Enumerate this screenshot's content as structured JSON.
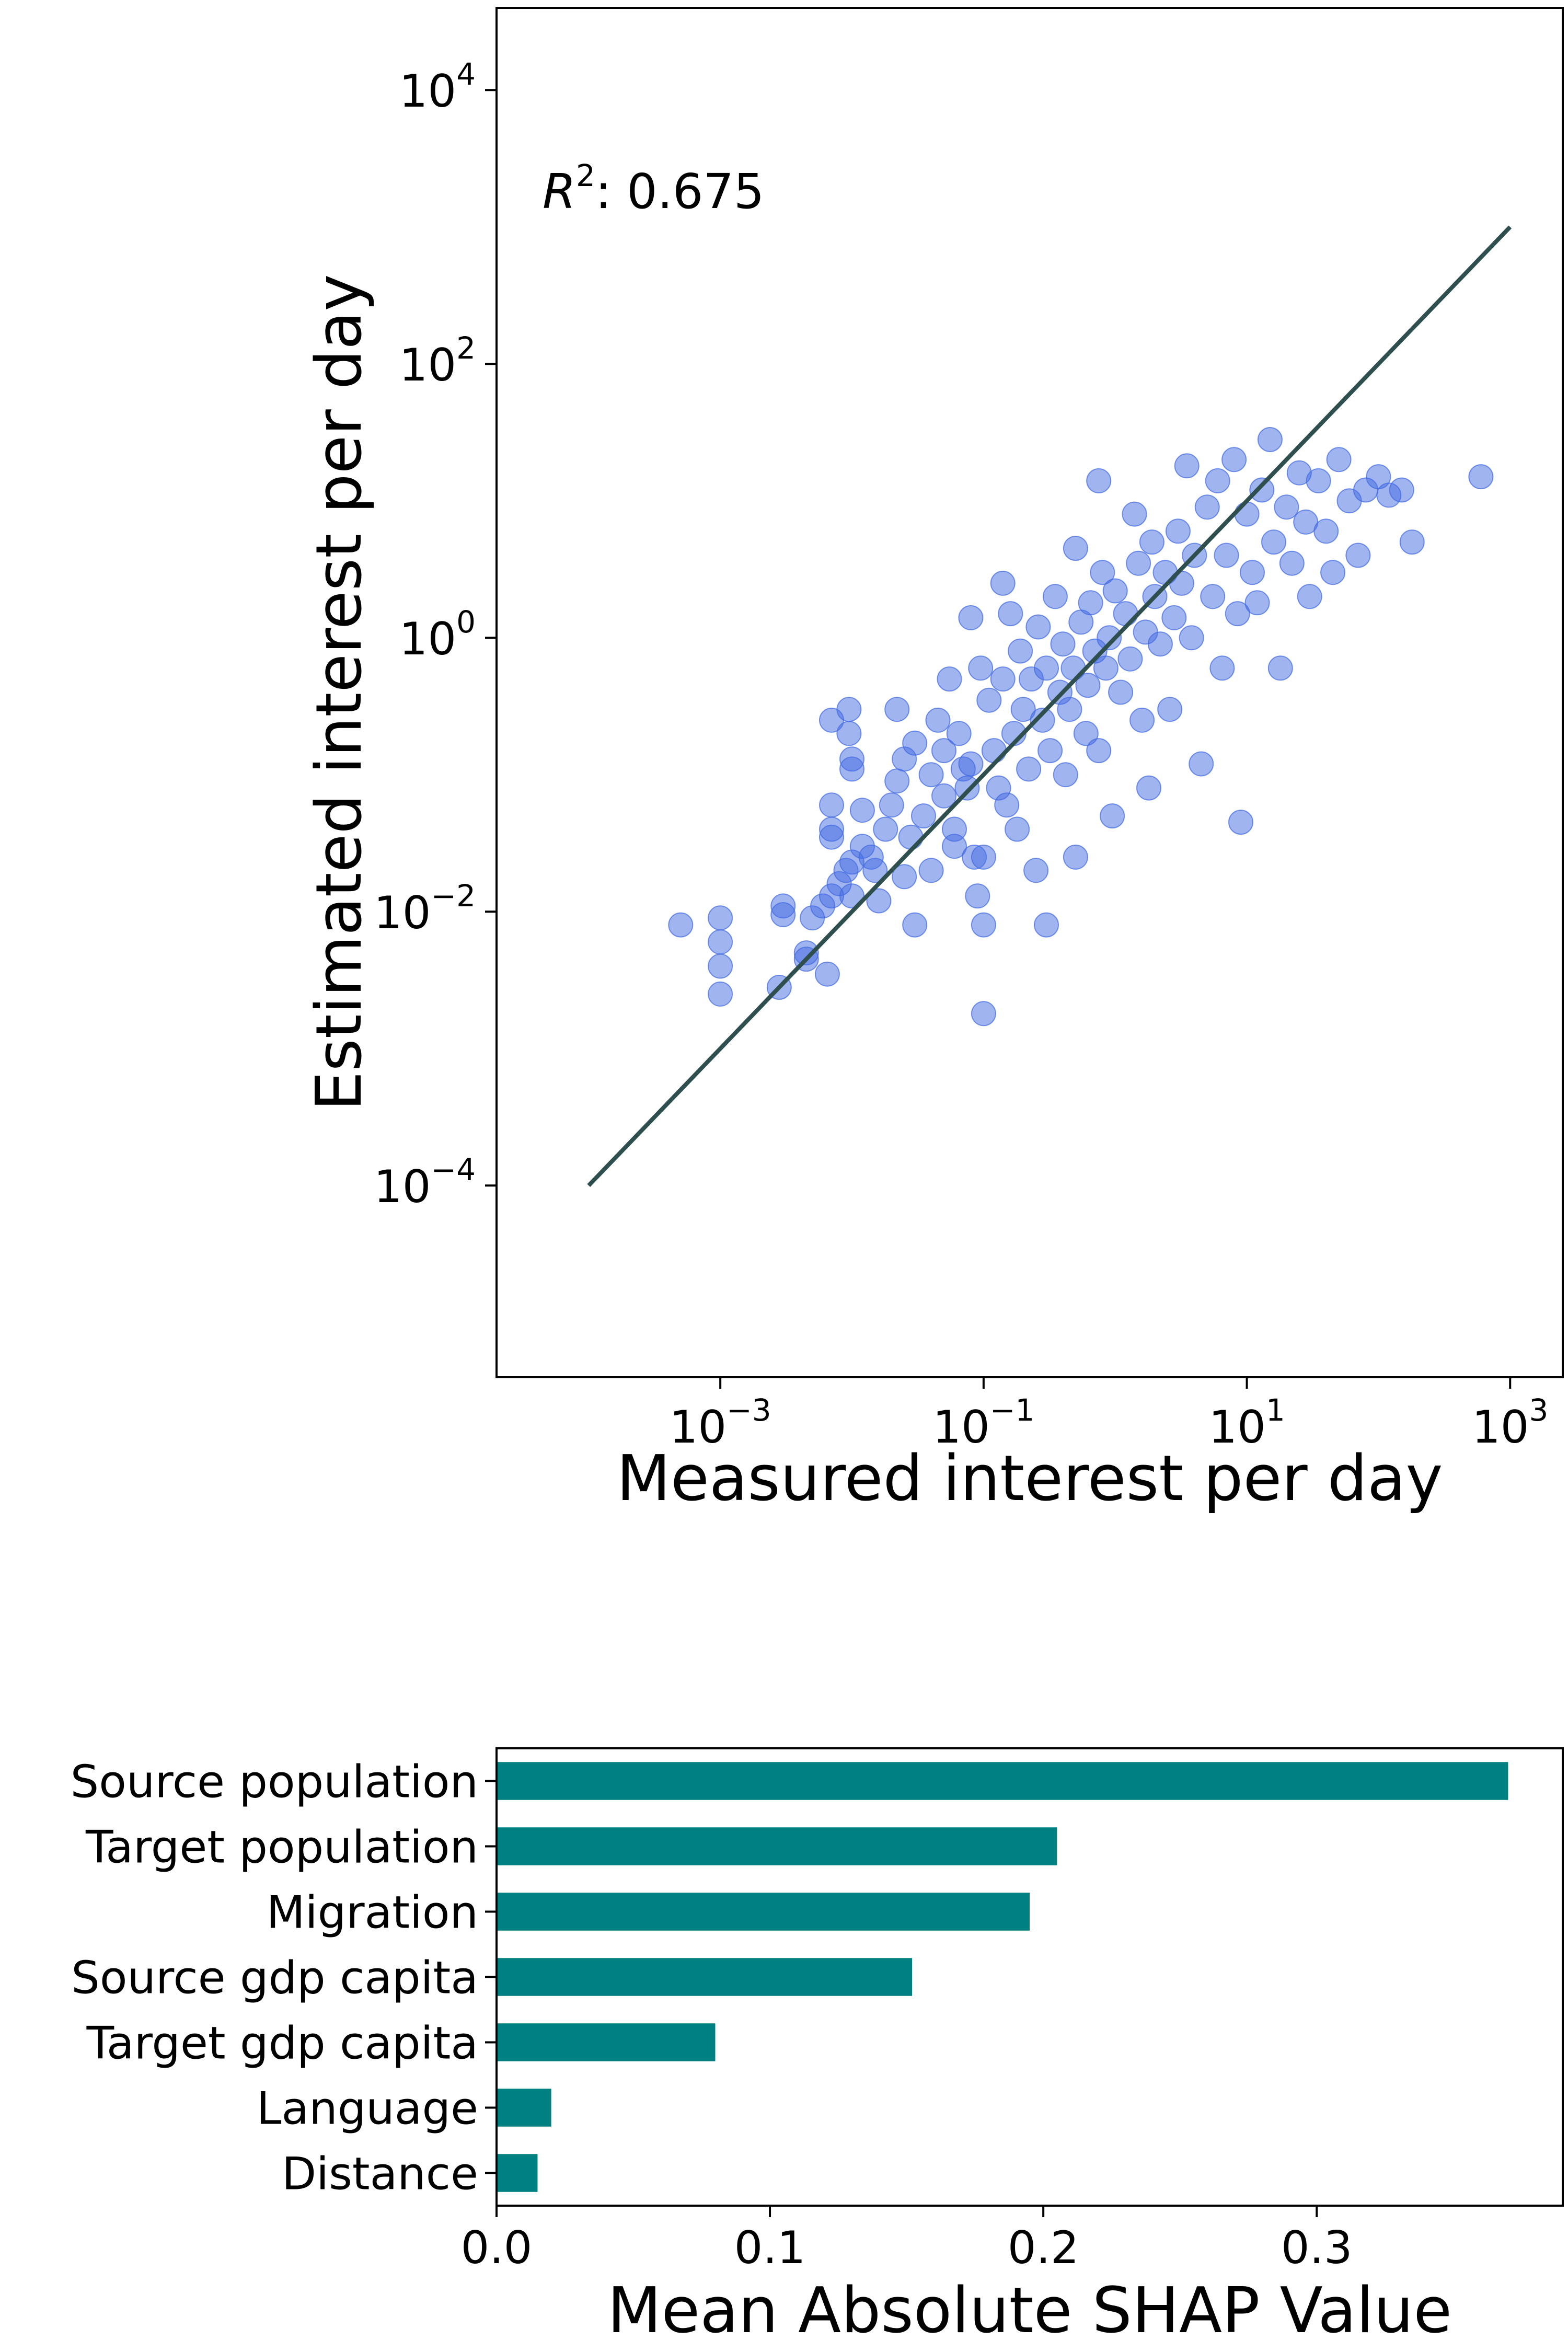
{
  "chart_data": [
    {
      "type": "scatter",
      "xlabel": "Measured interest per day",
      "ylabel": "Estimated interest per day",
      "xscale": "log",
      "yscale": "log",
      "xlim_log10": [
        -4.7,
        3.4
      ],
      "ylim_log10": [
        -5.4,
        4.6
      ],
      "xticks": [
        {
          "base": "10",
          "exp": "−3",
          "value": 0.001
        },
        {
          "base": "10",
          "exp": "−1",
          "value": 0.1
        },
        {
          "base": "10",
          "exp": "1",
          "value": 10
        },
        {
          "base": "10",
          "exp": "3",
          "value": 1000
        }
      ],
      "yticks": [
        {
          "base": "10",
          "exp": "4",
          "value": 10000
        },
        {
          "base": "10",
          "exp": "2",
          "value": 100
        },
        {
          "base": "10",
          "exp": "0",
          "value": 1
        },
        {
          "base": "10",
          "exp": "−2",
          "value": 0.01
        },
        {
          "base": "10",
          "exp": "−4",
          "value": 0.0001
        }
      ],
      "annotation": {
        "symbol": "R",
        "sup": "2",
        "text": ": 0.675"
      },
      "reference_line": {
        "x": [
          0.0001,
          1000
        ],
        "y": [
          0.0001,
          1000
        ],
        "color": "#2f4f4f"
      },
      "point_color": "#4169e1",
      "point_alpha": 0.5,
      "grid": false,
      "points": [
        [
          0.0005,
          0.008
        ],
        [
          0.001,
          0.009
        ],
        [
          0.001,
          0.006
        ],
        [
          0.001,
          0.004
        ],
        [
          0.001,
          0.0025
        ],
        [
          0.003,
          0.011
        ],
        [
          0.003,
          0.0095
        ],
        [
          0.0028,
          0.0028
        ],
        [
          0.0045,
          0.005
        ],
        [
          0.0045,
          0.0045
        ],
        [
          0.005,
          0.009
        ],
        [
          0.006,
          0.011
        ],
        [
          0.0065,
          0.0035
        ],
        [
          0.007,
          0.013
        ],
        [
          0.008,
          0.016
        ],
        [
          0.009,
          0.02
        ],
        [
          0.01,
          0.013
        ],
        [
          0.01,
          0.023
        ],
        [
          0.007,
          0.25
        ],
        [
          0.007,
          0.06
        ],
        [
          0.007,
          0.04
        ],
        [
          0.007,
          0.035
        ],
        [
          0.0095,
          0.3
        ],
        [
          0.0095,
          0.2
        ],
        [
          0.01,
          0.13
        ],
        [
          0.01,
          0.11
        ],
        [
          0.012,
          0.055
        ],
        [
          0.012,
          0.03
        ],
        [
          0.014,
          0.025
        ],
        [
          0.015,
          0.02
        ],
        [
          0.016,
          0.012
        ],
        [
          0.018,
          0.04
        ],
        [
          0.02,
          0.06
        ],
        [
          0.022,
          0.09
        ],
        [
          0.022,
          0.3
        ],
        [
          0.025,
          0.13
        ],
        [
          0.025,
          0.018
        ],
        [
          0.028,
          0.035
        ],
        [
          0.03,
          0.17
        ],
        [
          0.03,
          0.008
        ],
        [
          0.035,
          0.05
        ],
        [
          0.04,
          0.02
        ],
        [
          0.04,
          0.1
        ],
        [
          0.045,
          0.25
        ],
        [
          0.05,
          0.15
        ],
        [
          0.05,
          0.07
        ],
        [
          0.055,
          0.5
        ],
        [
          0.06,
          0.04
        ],
        [
          0.06,
          0.03
        ],
        [
          0.065,
          0.2
        ],
        [
          0.07,
          0.11
        ],
        [
          0.075,
          0.08
        ],
        [
          0.08,
          1.4
        ],
        [
          0.08,
          0.12
        ],
        [
          0.085,
          0.025
        ],
        [
          0.09,
          0.013
        ],
        [
          0.095,
          0.6
        ],
        [
          0.1,
          0.0018
        ],
        [
          0.1,
          0.025
        ],
        [
          0.1,
          0.008
        ],
        [
          0.11,
          0.35
        ],
        [
          0.12,
          0.15
        ],
        [
          0.13,
          0.08
        ],
        [
          0.14,
          2.5
        ],
        [
          0.14,
          0.5
        ],
        [
          0.15,
          0.06
        ],
        [
          0.16,
          1.5
        ],
        [
          0.17,
          0.2
        ],
        [
          0.18,
          0.04
        ],
        [
          0.19,
          0.8
        ],
        [
          0.2,
          0.3
        ],
        [
          0.22,
          0.11
        ],
        [
          0.23,
          0.5
        ],
        [
          0.25,
          0.02
        ],
        [
          0.26,
          1.2
        ],
        [
          0.28,
          0.25
        ],
        [
          0.3,
          0.008
        ],
        [
          0.3,
          0.6
        ],
        [
          0.32,
          0.15
        ],
        [
          0.35,
          2.0
        ],
        [
          0.38,
          0.4
        ],
        [
          0.4,
          0.9
        ],
        [
          0.42,
          0.1
        ],
        [
          0.45,
          0.3
        ],
        [
          0.48,
          0.6
        ],
        [
          0.5,
          0.025
        ],
        [
          0.5,
          4.5
        ],
        [
          0.55,
          1.3
        ],
        [
          0.6,
          0.2
        ],
        [
          0.62,
          0.45
        ],
        [
          0.65,
          1.8
        ],
        [
          0.7,
          0.8
        ],
        [
          0.75,
          14.0
        ],
        [
          0.75,
          0.15
        ],
        [
          0.8,
          3.0
        ],
        [
          0.85,
          0.6
        ],
        [
          0.9,
          1.0
        ],
        [
          0.95,
          0.05
        ],
        [
          1.0,
          2.2
        ],
        [
          1.1,
          0.4
        ],
        [
          1.2,
          1.5
        ],
        [
          1.3,
          0.7
        ],
        [
          1.4,
          8.0
        ],
        [
          1.5,
          3.5
        ],
        [
          1.6,
          0.25
        ],
        [
          1.7,
          1.1
        ],
        [
          1.8,
          0.08
        ],
        [
          1.9,
          5.0
        ],
        [
          2.0,
          2.0
        ],
        [
          2.2,
          0.9
        ],
        [
          2.4,
          3.0
        ],
        [
          2.6,
          0.3
        ],
        [
          2.8,
          1.4
        ],
        [
          3.0,
          6.0
        ],
        [
          3.2,
          2.5
        ],
        [
          3.5,
          18.0
        ],
        [
          3.8,
          1.0
        ],
        [
          4.0,
          4.0
        ],
        [
          4.5,
          0.12
        ],
        [
          5.0,
          9.0
        ],
        [
          5.5,
          2.0
        ],
        [
          6.0,
          14.0
        ],
        [
          6.5,
          0.6
        ],
        [
          7.0,
          4.0
        ],
        [
          8.0,
          20.0
        ],
        [
          8.5,
          1.5
        ],
        [
          9.0,
          0.045
        ],
        [
          10.0,
          8.0
        ],
        [
          11.0,
          3.0
        ],
        [
          12.0,
          1.8
        ],
        [
          13.0,
          12.0
        ],
        [
          15.0,
          28.0
        ],
        [
          16.0,
          5.0
        ],
        [
          18.0,
          0.6
        ],
        [
          20.0,
          9.0
        ],
        [
          22.0,
          3.5
        ],
        [
          25.0,
          16.0
        ],
        [
          28.0,
          7.0
        ],
        [
          30.0,
          2.0
        ],
        [
          35.0,
          14.0
        ],
        [
          40.0,
          6.0
        ],
        [
          45.0,
          3.0
        ],
        [
          50.0,
          20.0
        ],
        [
          60.0,
          10.0
        ],
        [
          70.0,
          4.0
        ],
        [
          80.0,
          12.0
        ],
        [
          100.0,
          15.0
        ],
        [
          120.0,
          11.0
        ],
        [
          150.0,
          12.0
        ],
        [
          180.0,
          5.0
        ],
        [
          600.0,
          15.0
        ]
      ]
    },
    {
      "type": "bar",
      "orientation": "horizontal",
      "xlabel": "Mean Absolute SHAP Value",
      "categories": [
        "Source population",
        "Target population",
        "Migration",
        "Source gdp capita",
        "Target gdp capita",
        "Language",
        "Distance"
      ],
      "values": [
        0.37,
        0.205,
        0.195,
        0.152,
        0.08,
        0.02,
        0.015
      ],
      "xlim": [
        0,
        0.39
      ],
      "xticks": [
        "0.0",
        "0.1",
        "0.2",
        "0.3"
      ],
      "color": "#008080",
      "grid": false
    }
  ]
}
